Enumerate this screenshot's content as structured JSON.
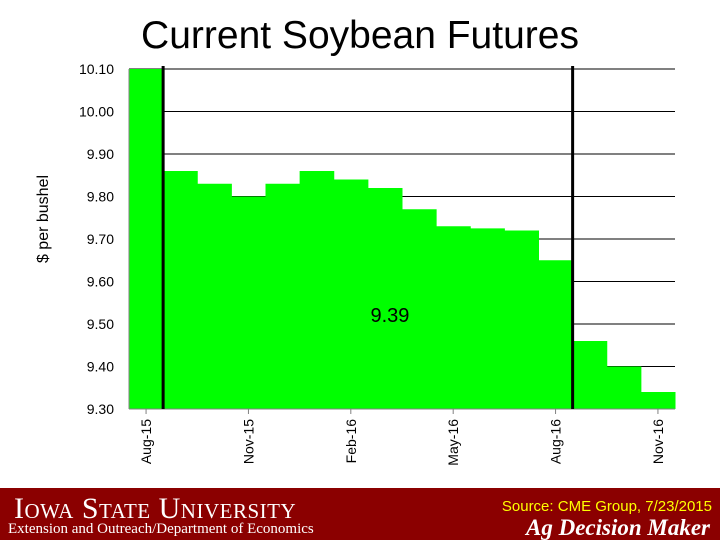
{
  "chart_data": {
    "type": "bar",
    "title": "Current Soybean Futures",
    "ylabel": "$ per bushel",
    "xlabel": "",
    "ylim": [
      9.3,
      10.1
    ],
    "yticks": [
      "10.10",
      "10.00",
      "9.90",
      "9.80",
      "9.70",
      "9.60",
      "9.50",
      "9.40",
      "9.30"
    ],
    "xtick_labels": [
      "Aug-15",
      "Nov-15",
      "Feb-16",
      "May-16",
      "Aug-16",
      "Nov-16"
    ],
    "categories": [
      "Aug-15",
      "Sep-15",
      "Oct-15",
      "Nov-15",
      "Dec-15",
      "Jan-16",
      "Feb-16",
      "Mar-16",
      "Apr-16",
      "May-16",
      "Jun-16",
      "Jul-16",
      "Aug-16",
      "Sep-16",
      "Oct-16",
      "Nov-16"
    ],
    "values": [
      10.1,
      9.86,
      9.83,
      9.8,
      9.83,
      9.86,
      9.84,
      9.82,
      9.77,
      9.73,
      9.725,
      9.72,
      9.65,
      9.46,
      9.4,
      9.34
    ],
    "bar_color": "#00ff00",
    "grid": true,
    "annotation": "9.39",
    "marker_lines_between": [
      [
        "Aug-15",
        "Sep-15"
      ],
      [
        "Aug-16",
        "Sep-16"
      ]
    ]
  },
  "footer": {
    "university": "Iowa State University",
    "department": "Extension and Outreach/Department of Economics",
    "source": "Source: CME Group, 7/23/2015",
    "brand": "Ag Decision Maker"
  },
  "colors": {
    "footer_bg": "#8b0000",
    "source_text": "#ffff00"
  }
}
